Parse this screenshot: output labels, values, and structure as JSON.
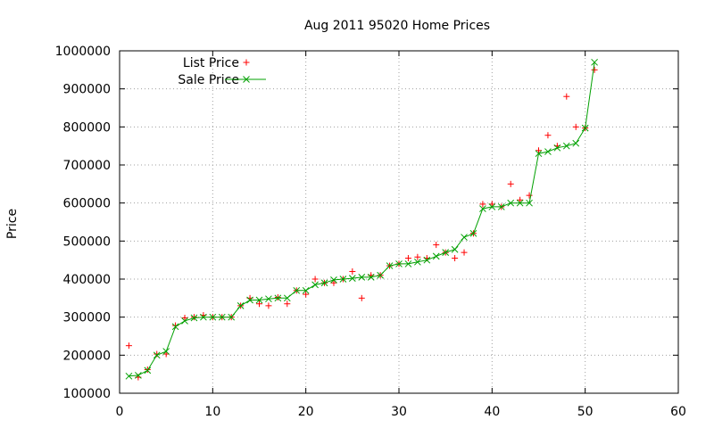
{
  "chart_data": {
    "type": "line",
    "title": "Aug 2011 95020 Home Prices",
    "xlabel": "",
    "ylabel": "Price",
    "xlim": [
      0,
      60
    ],
    "ylim": [
      100000,
      1000000
    ],
    "xticks": [
      0,
      10,
      20,
      30,
      40,
      50,
      60
    ],
    "yticks": [
      100000,
      200000,
      300000,
      400000,
      500000,
      600000,
      700000,
      800000,
      900000,
      1000000
    ],
    "grid": true,
    "legend_position": "top-left",
    "series": [
      {
        "name": "List Price",
        "style": "points",
        "marker": "+",
        "color": "#ff0000",
        "x": [
          1,
          2,
          3,
          4,
          5,
          6,
          7,
          8,
          9,
          10,
          11,
          12,
          13,
          14,
          15,
          16,
          17,
          18,
          19,
          20,
          21,
          22,
          23,
          24,
          25,
          26,
          27,
          28,
          29,
          30,
          31,
          32,
          33,
          34,
          35,
          36,
          37,
          38,
          39,
          40,
          41,
          42,
          43,
          44,
          45,
          46,
          47,
          48,
          49,
          50,
          51
        ],
        "y": [
          225000,
          142000,
          162000,
          203000,
          203000,
          278000,
          298000,
          300000,
          305000,
          300000,
          300000,
          300000,
          330000,
          350000,
          335000,
          330000,
          352000,
          335000,
          370000,
          360000,
          400000,
          390000,
          390000,
          400000,
          420000,
          350000,
          410000,
          410000,
          435000,
          440000,
          455000,
          458000,
          455000,
          490000,
          470000,
          455000,
          470000,
          520000,
          597000,
          597000,
          590000,
          650000,
          608000,
          620000,
          738000,
          778000,
          750000,
          880000,
          800000,
          797000,
          950000
        ]
      },
      {
        "name": "Sale Price",
        "style": "linespoints",
        "marker": "x",
        "color": "#00a000",
        "x": [
          1,
          2,
          3,
          4,
          5,
          6,
          7,
          8,
          9,
          10,
          11,
          12,
          13,
          14,
          15,
          16,
          17,
          18,
          19,
          20,
          21,
          22,
          23,
          24,
          25,
          26,
          27,
          28,
          29,
          30,
          31,
          32,
          33,
          34,
          35,
          36,
          37,
          38,
          39,
          40,
          41,
          42,
          43,
          44,
          45,
          46,
          47,
          48,
          49,
          50,
          51
        ],
        "y": [
          145000,
          147000,
          160000,
          200000,
          210000,
          275000,
          290000,
          298000,
          300000,
          300000,
          300000,
          300000,
          330000,
          345000,
          345000,
          348000,
          350000,
          350000,
          370000,
          370000,
          385000,
          390000,
          398000,
          400000,
          402000,
          405000,
          405000,
          410000,
          435000,
          440000,
          440000,
          445000,
          450000,
          460000,
          470000,
          478000,
          510000,
          520000,
          585000,
          590000,
          590000,
          600000,
          600000,
          600000,
          730000,
          735000,
          745000,
          750000,
          757000,
          797000,
          970000
        ]
      }
    ]
  }
}
